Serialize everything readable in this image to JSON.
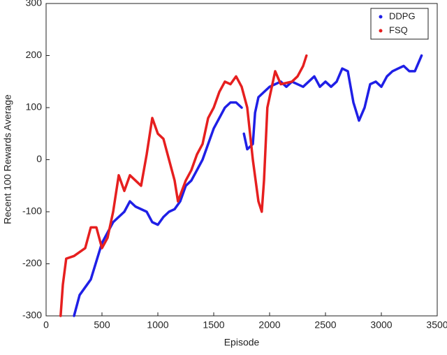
{
  "chart_data": {
    "type": "line",
    "x_label": "Episode",
    "y_label": "Recent 100 Rewards Average",
    "xlim": [
      0,
      3500
    ],
    "xticks": [
      0,
      500,
      1000,
      1500,
      2000,
      2500,
      3000,
      3500
    ],
    "ylim": [
      -300,
      300
    ],
    "yticks": [
      -300,
      -200,
      -100,
      0,
      100,
      200,
      300
    ],
    "legend": "top-right",
    "series": [
      {
        "name": "DDPG",
        "color": "#1f1fe6",
        "x": [
          250,
          300,
          400,
          500,
          600,
          700,
          750,
          800,
          900,
          950,
          1000,
          1050,
          1100,
          1150,
          1200,
          1250,
          1300,
          1350,
          1400,
          1450,
          1500,
          1550,
          1600,
          1650,
          1700,
          1750,
          1760,
          1770,
          1800,
          1850,
          1870,
          1900,
          1950,
          2000,
          2050,
          2100,
          2150,
          2200,
          2300,
          2400,
          2450,
          2500,
          2550,
          2600,
          2650,
          2700,
          2750,
          2800,
          2850,
          2900,
          2950,
          3000,
          3050,
          3100,
          3150,
          3200,
          3250,
          3300,
          3360
        ],
        "values": [
          -300,
          -260,
          -230,
          -160,
          -120,
          -100,
          -80,
          -90,
          -100,
          -120,
          -125,
          -110,
          -100,
          -95,
          -80,
          -50,
          -40,
          -20,
          0,
          30,
          60,
          80,
          100,
          110,
          110,
          100,
          null,
          50,
          20,
          30,
          90,
          120,
          130,
          140,
          145,
          150,
          140,
          150,
          140,
          160,
          140,
          150,
          140,
          150,
          175,
          170,
          110,
          75,
          100,
          145,
          150,
          140,
          160,
          170,
          175,
          180,
          170,
          170,
          200
        ]
      },
      {
        "name": "FSQ",
        "color": "#e61f1f",
        "x": [
          130,
          150,
          180,
          250,
          350,
          400,
          450,
          500,
          550,
          600,
          650,
          700,
          750,
          800,
          850,
          900,
          950,
          1000,
          1050,
          1100,
          1150,
          1180,
          1250,
          1300,
          1350,
          1400,
          1450,
          1500,
          1550,
          1600,
          1650,
          1700,
          1750,
          1800,
          1850,
          1900,
          1930,
          1950,
          1980,
          2050,
          2100,
          2200,
          2250,
          2300,
          2330
        ],
        "values": [
          -300,
          -240,
          -190,
          -185,
          -170,
          -130,
          -130,
          -170,
          -150,
          -100,
          -30,
          -60,
          -30,
          -40,
          -50,
          10,
          80,
          50,
          40,
          0,
          -40,
          -80,
          -40,
          -20,
          10,
          30,
          80,
          100,
          130,
          150,
          145,
          160,
          140,
          100,
          0,
          -80,
          -100,
          -40,
          100,
          170,
          145,
          150,
          160,
          180,
          200
        ]
      }
    ]
  }
}
